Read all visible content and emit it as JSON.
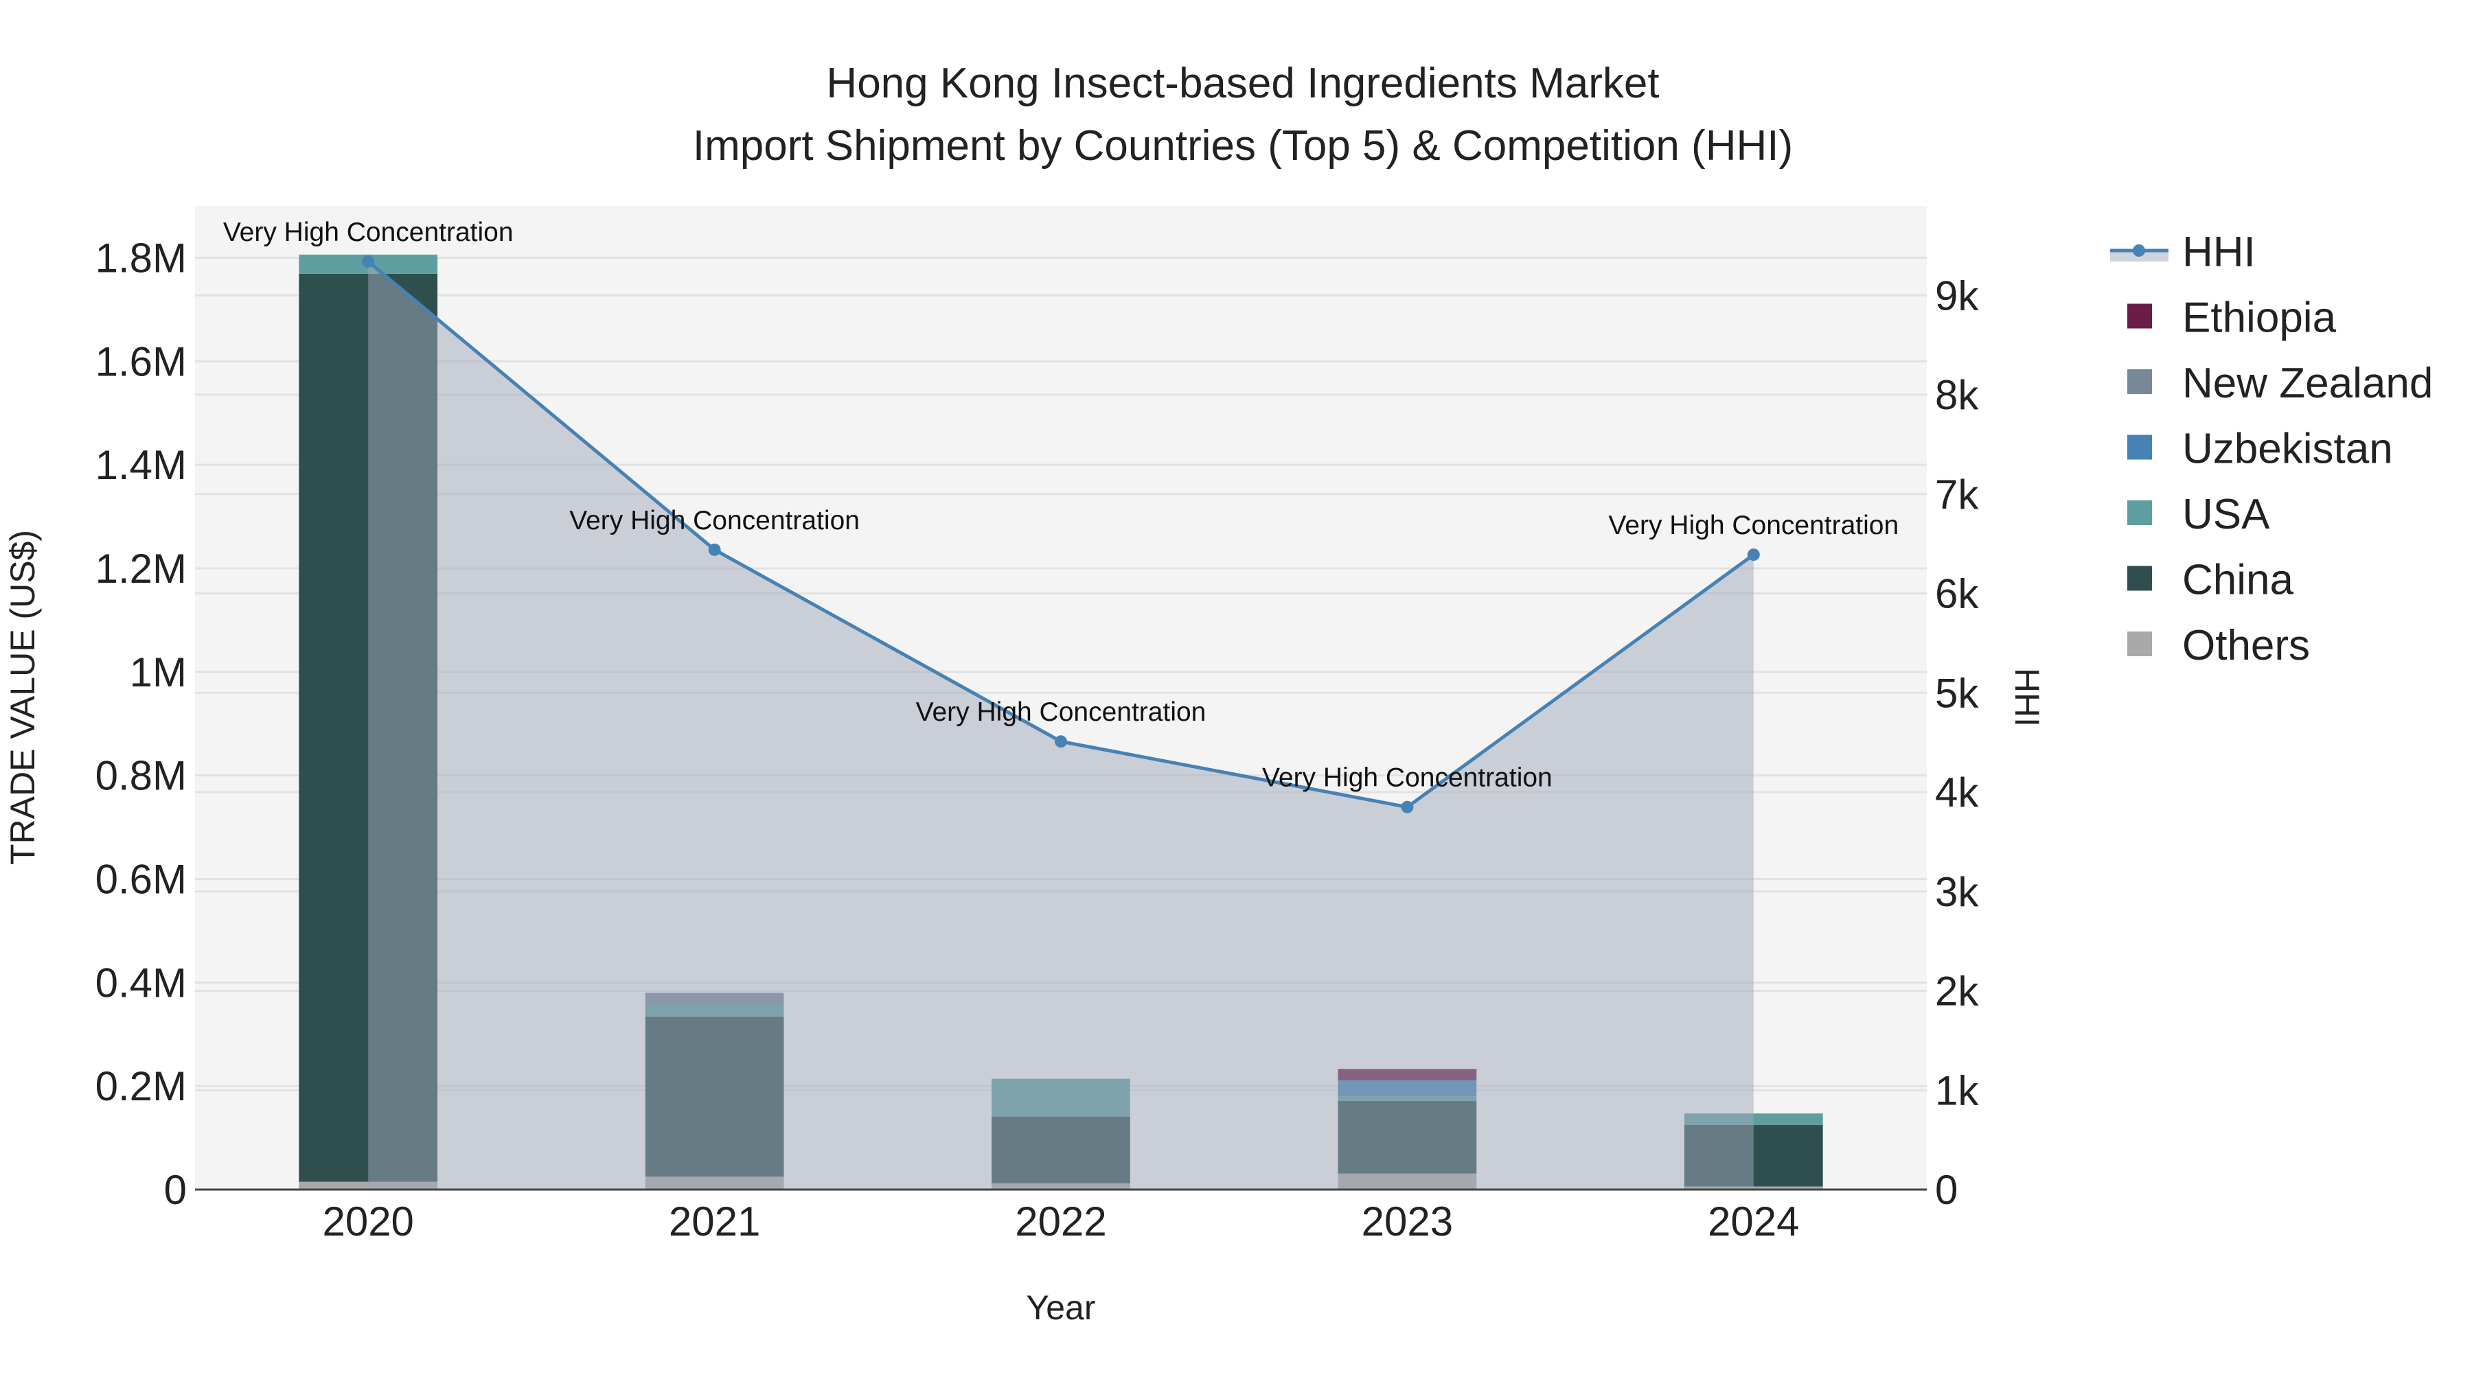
{
  "chart_data": {
    "type": "bar",
    "title": "Hong Kong Insect-based Ingredients Market",
    "subtitle": "Import Shipment by Countries (Top 5) & Competition (HHI)",
    "xlabel": "Year",
    "ylabel": "TRADE VALUE (US$)",
    "y2label": "HHI",
    "categories": [
      "2020",
      "2021",
      "2022",
      "2023",
      "2024"
    ],
    "ylim": [
      0,
      1900000
    ],
    "y2lim": [
      0,
      9900
    ],
    "yticks": [
      0,
      200000,
      400000,
      600000,
      800000,
      1000000,
      1200000,
      1400000,
      1600000,
      1800000
    ],
    "ytick_labels": [
      "0",
      "0.2M",
      "0.4M",
      "0.6M",
      "0.8M",
      "1M",
      "1.2M",
      "1.4M",
      "1.6M",
      "1.8M"
    ],
    "y2ticks": [
      0,
      1000,
      2000,
      3000,
      4000,
      5000,
      6000,
      7000,
      8000,
      9000
    ],
    "y2tick_labels": [
      "0",
      "1k",
      "2k",
      "3k",
      "4k",
      "5k",
      "6k",
      "7k",
      "8k",
      "9k"
    ],
    "grid": true,
    "legend_position": "right",
    "series": [
      {
        "name": "Others",
        "color": "#A9A9A9",
        "values": [
          15000,
          25000,
          12000,
          31000,
          6000
        ]
      },
      {
        "name": "China",
        "color": "#2F4F4F",
        "values": [
          1754000,
          309000,
          129000,
          140000,
          119000
        ]
      },
      {
        "name": "USA",
        "color": "#5F9EA0",
        "values": [
          37000,
          24000,
          73000,
          9000,
          22000
        ]
      },
      {
        "name": "Uzbekistan",
        "color": "#4682B4",
        "values": [
          0,
          0,
          0,
          31000,
          0
        ]
      },
      {
        "name": "New Zealand",
        "color": "#778899",
        "values": [
          0,
          22000,
          0,
          0,
          0
        ]
      },
      {
        "name": "Ethiopia",
        "color": "#6B1E45",
        "values": [
          0,
          0,
          0,
          22000,
          0
        ]
      }
    ],
    "hhi": {
      "name": "HHI",
      "color": "#4682B4",
      "values": [
        9340,
        6440,
        4510,
        3850,
        6390
      ],
      "annotations": [
        "Very High Concentration",
        "Very High Concentration",
        "Very High Concentration",
        "Very High Concentration",
        "Very High Concentration"
      ]
    },
    "legend": [
      "HHI",
      "Ethiopia",
      "New Zealand",
      "Uzbekistan",
      "USA",
      "China",
      "Others"
    ]
  }
}
